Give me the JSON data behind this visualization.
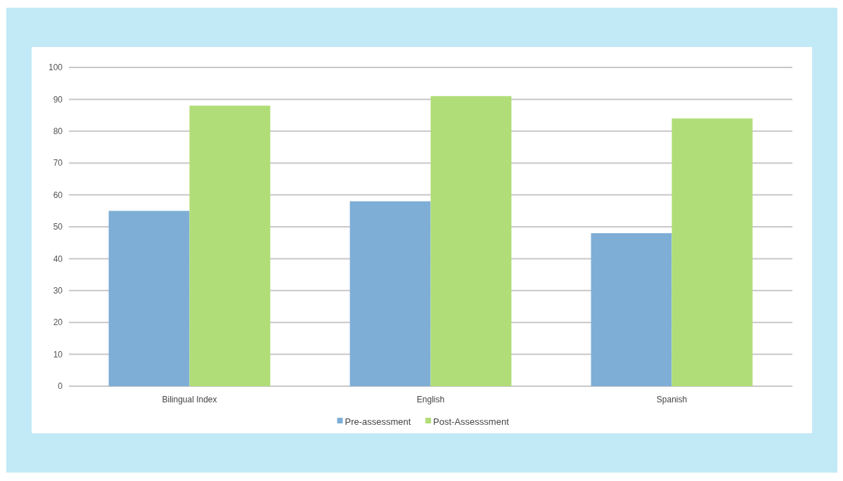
{
  "chart_data": {
    "type": "bar",
    "categories": [
      "Bilingual Index",
      "English",
      "Spanish"
    ],
    "series": [
      {
        "name": "Pre-assessment",
        "color": "#7eaed6",
        "values": [
          55,
          58,
          48
        ]
      },
      {
        "name": "Post-Assesssment",
        "color": "#b1dd78",
        "values": [
          88,
          91,
          84
        ]
      }
    ],
    "ylim": [
      0,
      100
    ],
    "yticks": [
      0,
      10,
      20,
      30,
      40,
      50,
      60,
      70,
      80,
      90,
      100
    ],
    "grid": "y",
    "legend": "bottom"
  }
}
